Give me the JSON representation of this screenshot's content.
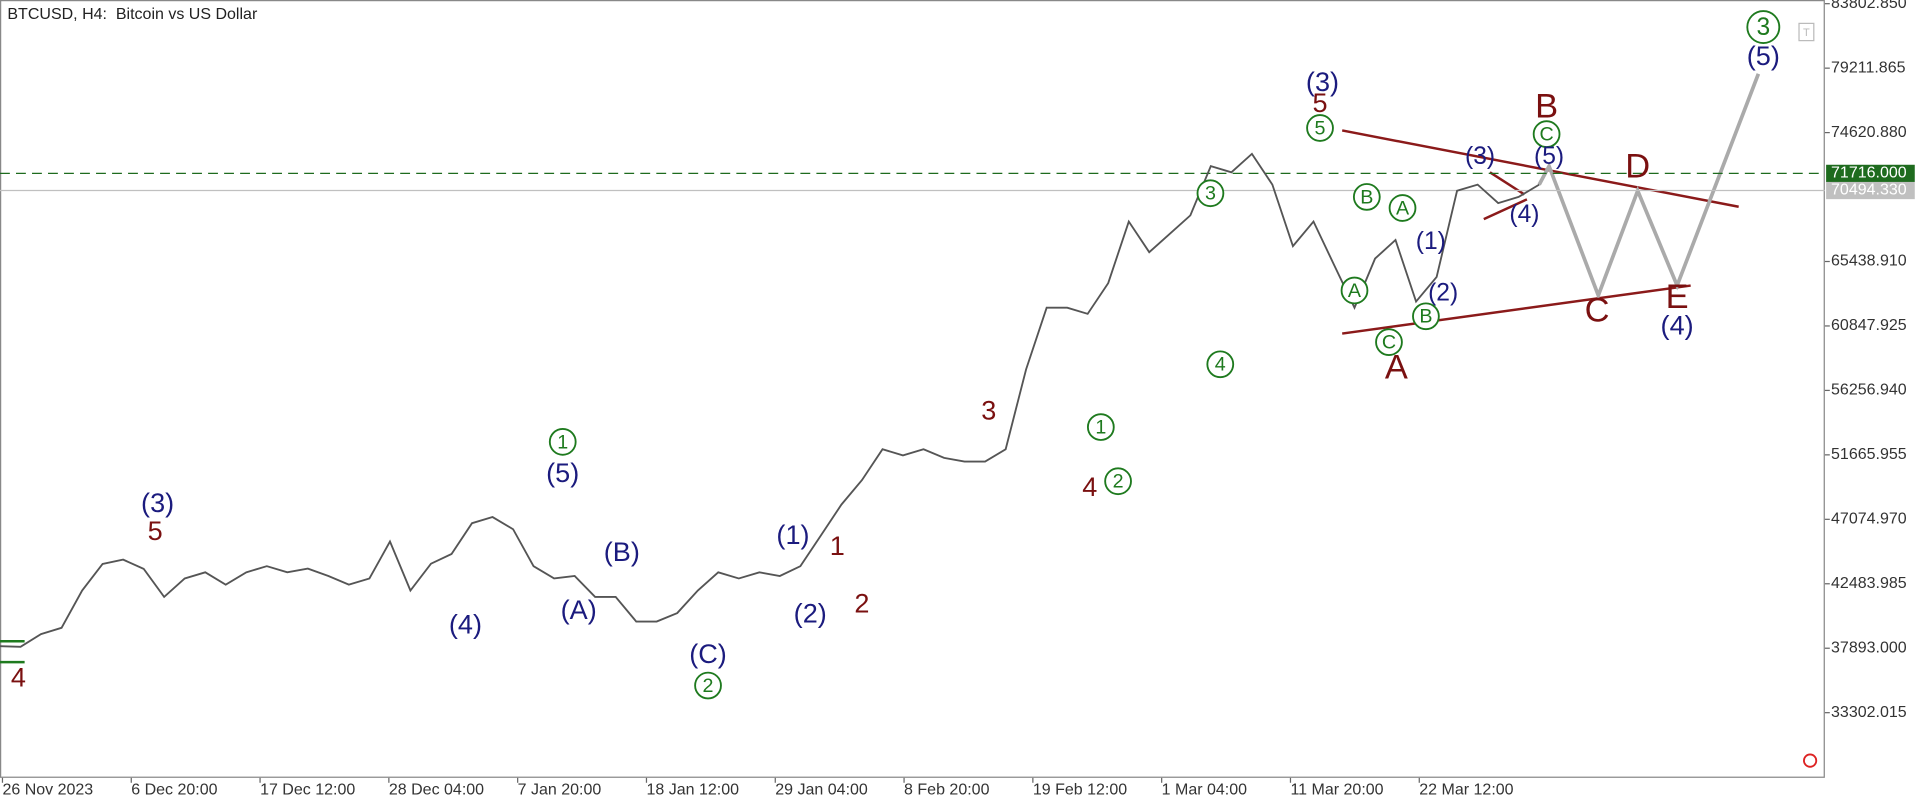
{
  "chart_data": {
    "type": "line",
    "title": "BTCUSD, H4:  Bitcoin vs US Dollar",
    "color": "#555555",
    "values": [
      38039,
      38000,
      38900,
      39350,
      42000,
      43900,
      44200,
      43550,
      41550,
      42860,
      43300,
      42420,
      43300,
      43740,
      43300,
      43560,
      43040,
      42420,
      42860,
      45490,
      42000,
      43910,
      44610,
      46800,
      47240,
      46370,
      43740,
      42860,
      43040,
      41550,
      41550,
      39790,
      39790,
      40400,
      42000,
      43300,
      42860,
      43300,
      43040,
      43740,
      45930,
      48120,
      49870,
      52070,
      51630,
      52070,
      51450,
      51190,
      51190,
      52070,
      57760,
      62150,
      62150,
      61710,
      63900,
      68290,
      66100,
      67410,
      68720,
      72230,
      71790,
      73110,
      70920,
      66530,
      68290,
      65220,
      62150,
      65650,
      66970,
      62590,
      64340,
      70480,
      70920,
      69600,
      70040,
      70920
    ],
    "ylim": [
      28660,
      84066
    ],
    "yticks": [
      {
        "value": 83802.85,
        "label": "83802.850"
      },
      {
        "value": 79211.865,
        "label": "79211.865"
      },
      {
        "value": 74620.88,
        "label": "74620.880"
      },
      {
        "value": 65438.91,
        "label": "65438.910"
      },
      {
        "value": 60847.925,
        "label": "60847.925"
      },
      {
        "value": 56256.94,
        "label": "56256.940"
      },
      {
        "value": 51665.955,
        "label": "51665.955"
      },
      {
        "value": 47074.97,
        "label": "47074.970"
      },
      {
        "value": 42483.985,
        "label": "42483.985"
      },
      {
        "value": 37893,
        "label": "37893.000"
      },
      {
        "value": 33302.015,
        "label": "33302.015"
      }
    ],
    "x_labels": [
      "26 Nov 2023",
      "6 Dec 20:00",
      "17 Dec 12:00",
      "28 Dec 04:00",
      "7 Jan 20:00",
      "18 Jan 12:00",
      "29 Jan 04:00",
      "8 Feb 20:00",
      "19 Feb 12:00",
      "1 Mar 04:00",
      "11 Mar 20:00",
      "22 Mar 12:00"
    ],
    "price_lines": [
      {
        "value": 71716,
        "label": "71716.000",
        "color": "#1e6b1e",
        "dashed": true
      },
      {
        "value": 70494.33,
        "label": "70494.330",
        "color": "#c0c0c0",
        "dashed": false
      }
    ],
    "annotations": [
      {
        "text": "4",
        "color": "#7a1010",
        "circled": false
      },
      {
        "text": "(3)",
        "color": "#1b1b7e",
        "circled": false
      },
      {
        "text": "5",
        "color": "#7a1010",
        "circled": false
      },
      {
        "text": "1",
        "color": "#1e7a1e",
        "circled": true
      },
      {
        "text": "(5)",
        "color": "#1b1b7e",
        "circled": false
      },
      {
        "text": "(4)",
        "color": "#1b1b7e",
        "circled": false
      },
      {
        "text": "(A)",
        "color": "#1b1b7e",
        "circled": false
      },
      {
        "text": "(B)",
        "color": "#1b1b7e",
        "circled": false
      },
      {
        "text": "(C)",
        "color": "#1b1b7e",
        "circled": false
      },
      {
        "text": "2",
        "color": "#1e7a1e",
        "circled": true
      },
      {
        "text": "(1)",
        "color": "#1b1b7e",
        "circled": false
      },
      {
        "text": "1",
        "color": "#7a1010",
        "circled": false
      },
      {
        "text": "(2)",
        "color": "#1b1b7e",
        "circled": false
      },
      {
        "text": "2",
        "color": "#7a1010",
        "circled": false
      },
      {
        "text": "3",
        "color": "#7a1010",
        "circled": false
      },
      {
        "text": "1",
        "color": "#1e7a1e",
        "circled": true
      },
      {
        "text": "4",
        "color": "#7a1010",
        "circled": false
      },
      {
        "text": "2",
        "color": "#1e7a1e",
        "circled": true
      },
      {
        "text": "3",
        "color": "#1e7a1e",
        "circled": true
      },
      {
        "text": "4",
        "color": "#1e7a1e",
        "circled": true
      },
      {
        "text": "(3)",
        "color": "#1b1b7e",
        "circled": false
      },
      {
        "text": "5",
        "color": "#7a1010",
        "circled": false
      },
      {
        "text": "5",
        "color": "#1e7a1e",
        "circled": true
      },
      {
        "text": "B",
        "color": "#1e7a1e",
        "circled": true
      },
      {
        "text": "A",
        "color": "#1e7a1e",
        "circled": true
      },
      {
        "text": "A",
        "color": "#1e7a1e",
        "circled": true
      },
      {
        "text": "C",
        "color": "#1e7a1e",
        "circled": true
      },
      {
        "text": "A",
        "color": "#7a1010",
        "circled": false
      },
      {
        "text": "(1)",
        "color": "#1b1b7e",
        "circled": false
      },
      {
        "text": "(2)",
        "color": "#1b1b7e",
        "circled": false
      },
      {
        "text": "B",
        "color": "#1e7a1e",
        "circled": true
      },
      {
        "text": "(3)",
        "color": "#1b1b7e",
        "circled": false
      },
      {
        "text": "(4)",
        "color": "#1b1b7e",
        "circled": false
      },
      {
        "text": "B",
        "color": "#7a1010",
        "circled": false
      },
      {
        "text": "C",
        "color": "#1e7a1e",
        "circled": true
      },
      {
        "text": "(5)",
        "color": "#1b1b7e",
        "circled": false
      },
      {
        "text": "D",
        "color": "#7a1010",
        "circled": false
      },
      {
        "text": "C",
        "color": "#7a1010",
        "circled": false
      },
      {
        "text": "E",
        "color": "#7a1010",
        "circled": false
      },
      {
        "text": "(4)",
        "color": "#1b1b7e",
        "circled": false
      },
      {
        "text": "3",
        "color": "#1e7a1e",
        "circled": true
      },
      {
        "text": "(5)",
        "color": "#1b1b7e",
        "circled": false
      }
    ]
  }
}
